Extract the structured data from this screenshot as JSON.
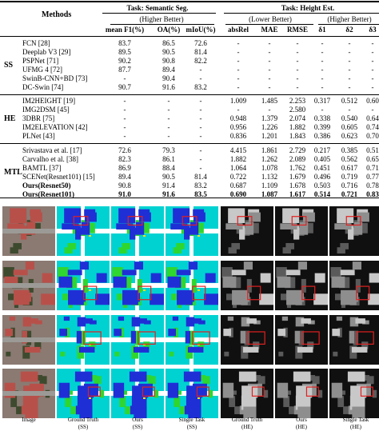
{
  "table": {
    "methods_header": "Methods",
    "task_seg": "Task: Semantic Seg.",
    "task_height": "Task: Height Est.",
    "higher_better": "(Higher Better)",
    "lower_better": "(Lower Better)",
    "columns": [
      "mean F1(%)",
      "OA(%)",
      "mIoU(%)",
      "absRel",
      "MAE",
      "RMSE",
      "δ1",
      "δ2",
      "δ3"
    ],
    "groups": [
      {
        "label": "SS",
        "rows": [
          {
            "method": "FCN [28]",
            "cells": [
              "83.7",
              "86.5",
              "72.6",
              "-",
              "-",
              "-",
              "-",
              "-",
              "-"
            ]
          },
          {
            "method": "Deeplab V3 [29]",
            "cells": [
              "89.5",
              "90.5",
              "81.4",
              "-",
              "-",
              "-",
              "-",
              "-",
              "-"
            ]
          },
          {
            "method": "PSPNet [71]",
            "cells": [
              "90.2",
              "90.8",
              "82.2",
              "-",
              "-",
              "-",
              "-",
              "-",
              "-"
            ]
          },
          {
            "method": "UFMG 4 [72]",
            "cells": [
              "87.7",
              "89.4",
              "-",
              "-",
              "-",
              "-",
              "-",
              "-",
              "-"
            ]
          },
          {
            "method": "SwinB-CNN+BD [73]",
            "cells": [
              "-",
              "90.4",
              "-",
              "-",
              "-",
              "-",
              "-",
              "-",
              "-"
            ]
          },
          {
            "method": "DC-Swin [74]",
            "cells": [
              "90.7",
              "91.6",
              "83.2",
              "-",
              "-",
              "-",
              "-",
              "-",
              "-"
            ]
          }
        ]
      },
      {
        "label": "HE",
        "rows": [
          {
            "method": "IM2HEIGHT [19]",
            "cells": [
              "-",
              "-",
              "-",
              "1.009",
              "1.485",
              "2.253",
              "0.317",
              "0.512",
              "0.60"
            ]
          },
          {
            "method": "IMG2DSM [45]",
            "cells": [
              "-",
              "-",
              "-",
              "-",
              "-",
              "2.580",
              "-",
              "-",
              "-"
            ]
          },
          {
            "method": "3DBR [75]",
            "cells": [
              "-",
              "-",
              "-",
              "0.948",
              "1.379",
              "2.074",
              "0.338",
              "0.540",
              "0.64"
            ]
          },
          {
            "method": "IM2ELEVATION [42]",
            "cells": [
              "-",
              "-",
              "-",
              "0.956",
              "1.226",
              "1.882",
              "0.399",
              "0.605",
              "0.74"
            ]
          },
          {
            "method": "PLNet [43]",
            "cells": [
              "-",
              "-",
              "-",
              "0.836",
              "1.201",
              "1.843",
              "0.386",
              "0.623",
              "0.70"
            ]
          }
        ]
      },
      {
        "label": "MTL",
        "rows": [
          {
            "method": "Srivastava et al. [17]",
            "cells": [
              "72.6",
              "79.3",
              "-",
              "4.415",
              "1.861",
              "2.729",
              "0.217",
              "0.385",
              "0.51"
            ]
          },
          {
            "method": "Carvalho et al. [38]",
            "cells": [
              "82.3",
              "86.1",
              "-",
              "1.882",
              "1.262",
              "2.089",
              "0.405",
              "0.562",
              "0.65"
            ]
          },
          {
            "method": "BAMTL [37]",
            "cells": [
              "86.9",
              "88.4",
              "-",
              "1.064",
              "1.078",
              "1.762",
              "0.451",
              "0.617",
              "0.71"
            ]
          },
          {
            "method": "SCENet(Resnet101) [15]",
            "cells": [
              "89.4",
              "90.5",
              "81.4",
              "0.722",
              "1.132",
              "1.679",
              "0.496",
              "0.719",
              "0.77"
            ]
          },
          {
            "method": "Ours(Resnet50)",
            "cells": [
              "90.8",
              "91.4",
              "83.2",
              "0.687",
              "1.109",
              "1.678",
              "0.503",
              "0.716",
              "0.78"
            ]
          },
          {
            "method": "Ours(Resnet101)",
            "cells": [
              "91.0",
              "91.6",
              "83.5",
              "0.690",
              "1.087",
              "1.617",
              "0.514",
              "0.721",
              "0.83"
            ]
          }
        ]
      }
    ]
  },
  "figure": {
    "captions": [
      {
        "line1": "Image",
        "line2": ""
      },
      {
        "line1": "Ground Truth",
        "line2": "(SS)"
      },
      {
        "line1": "Ours",
        "line2": "(SS)"
      },
      {
        "line1": "Single Task",
        "line2": "(SS)"
      },
      {
        "line1": "Ground Truth",
        "line2": "(HE)"
      },
      {
        "line1": "Ours",
        "line2": "(HE)"
      },
      {
        "line1": "Single Task",
        "line2": "(HE)"
      }
    ],
    "colors": {
      "ss_background": "#00c8ff",
      "ss_building": "#1f2fd6",
      "ss_low_veg": "#00d2d2",
      "ss_tree": "#2fd62f",
      "ss_road": "#ffffff",
      "ss_car": "#ffe000",
      "ss_clutter": "#e02020",
      "highlight_box": "#e02020"
    }
  }
}
